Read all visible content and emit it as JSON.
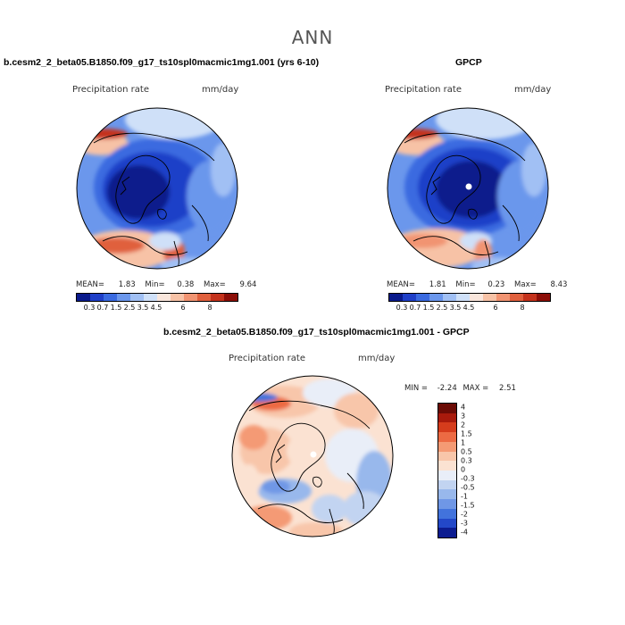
{
  "title": "ANN",
  "colors": {
    "abs_scale": [
      "#0a1a8c",
      "#1f3fc8",
      "#3a6ae0",
      "#6b97ec",
      "#a1c0f4",
      "#cfe0f8",
      "#f9e6dc",
      "#f7c2a6",
      "#f19472",
      "#e0603d",
      "#c4321c",
      "#8c0e08"
    ],
    "diff_scale": [
      "#6b0b05",
      "#a81a0c",
      "#d53c1c",
      "#ec6a43",
      "#f49a74",
      "#f8c6aa",
      "#fbe2d2",
      "#e9eef8",
      "#c2d4f1",
      "#98b8ec",
      "#6f97e6",
      "#4273dc",
      "#2348c8",
      "#0c1c90"
    ]
  },
  "chart_data": [
    {
      "type": "heatmap",
      "projection": "north-polar-stereographic",
      "title": "b.cesm2_2_beta05.B1850.f09_g17_ts10spl0macmic1mg1.001 (yrs 6-10)",
      "left_label": "Precipitation rate",
      "right_label": "mm/day",
      "stats": {
        "mean_label": "MEAN=",
        "mean": "1.83",
        "min_label": "Min=",
        "min": "0.38",
        "max_label": "Max=",
        "max": "9.64"
      },
      "colorbar": {
        "orientation": "horizontal",
        "labels": [
          "0.3",
          "0.7",
          "1.5",
          "2.5",
          "3.5",
          "4.5",
          "6",
          "8"
        ]
      }
    },
    {
      "type": "heatmap",
      "projection": "north-polar-stereographic",
      "title": "GPCP",
      "left_label": "Precipitation rate",
      "right_label": "mm/day",
      "stats": {
        "mean_label": "MEAN=",
        "mean": "1.81",
        "min_label": "Min=",
        "min": "0.23",
        "max_label": "Max=",
        "max": "8.43"
      },
      "colorbar": {
        "orientation": "horizontal",
        "labels": [
          "0.3",
          "0.7",
          "1.5",
          "2.5",
          "3.5",
          "4.5",
          "6",
          "8"
        ]
      }
    },
    {
      "type": "heatmap",
      "projection": "north-polar-stereographic",
      "title": "b.cesm2_2_beta05.B1850.f09_g17_ts10spl0macmic1mg1.001 - GPCP",
      "left_label": "Precipitation rate",
      "right_label": "mm/day",
      "stats": {
        "min_label": "MIN =",
        "min": "-2.24",
        "max_label": "MAX =",
        "max": "2.51"
      },
      "colorbar": {
        "orientation": "vertical",
        "labels": [
          "4",
          "3",
          "2",
          "1.5",
          "1",
          "0.5",
          "0.3",
          "0",
          "-0.3",
          "-0.5",
          "-1",
          "-1.5",
          "-2",
          "-3",
          "-4"
        ]
      }
    }
  ]
}
